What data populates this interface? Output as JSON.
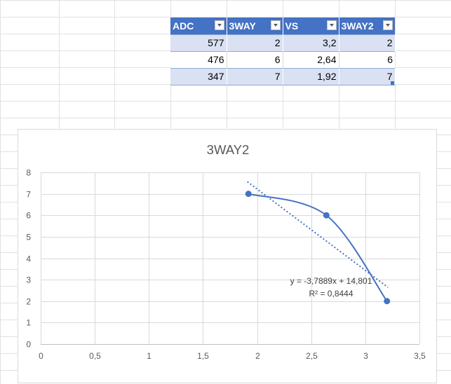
{
  "table": {
    "headers": [
      "ADC",
      "3WAY",
      "VS",
      "3WAY2"
    ],
    "rows": [
      [
        "577",
        "2",
        "3,2",
        "2"
      ],
      [
        "476",
        "6",
        "2,64",
        "6"
      ],
      [
        "347",
        "7",
        "1,92",
        "7"
      ]
    ],
    "header_color": "#4472c4",
    "band_color": "#d9e1f2"
  },
  "chart_data": {
    "type": "scatter",
    "title": "3WAY2",
    "series": [
      {
        "x": [
          3.2,
          2.64,
          1.92
        ],
        "y": [
          2,
          6,
          7
        ],
        "color": "#4472c4",
        "line": "smooth"
      }
    ],
    "trendline": {
      "type": "linear",
      "slope": -3.7889,
      "intercept": 14.801,
      "equation": "y = -3,7889x + 14,801",
      "r_squared": "R² = 0,8444",
      "style": "dotted"
    },
    "xlim": [
      0,
      3.5
    ],
    "ylim": [
      0,
      8
    ],
    "x_ticks": [
      "0",
      "0,5",
      "1",
      "1,5",
      "2",
      "2,5",
      "3",
      "3,5"
    ],
    "y_ticks": [
      "0",
      "1",
      "2",
      "3",
      "4",
      "5",
      "6",
      "7",
      "8"
    ],
    "grid": true,
    "legend": "none"
  }
}
